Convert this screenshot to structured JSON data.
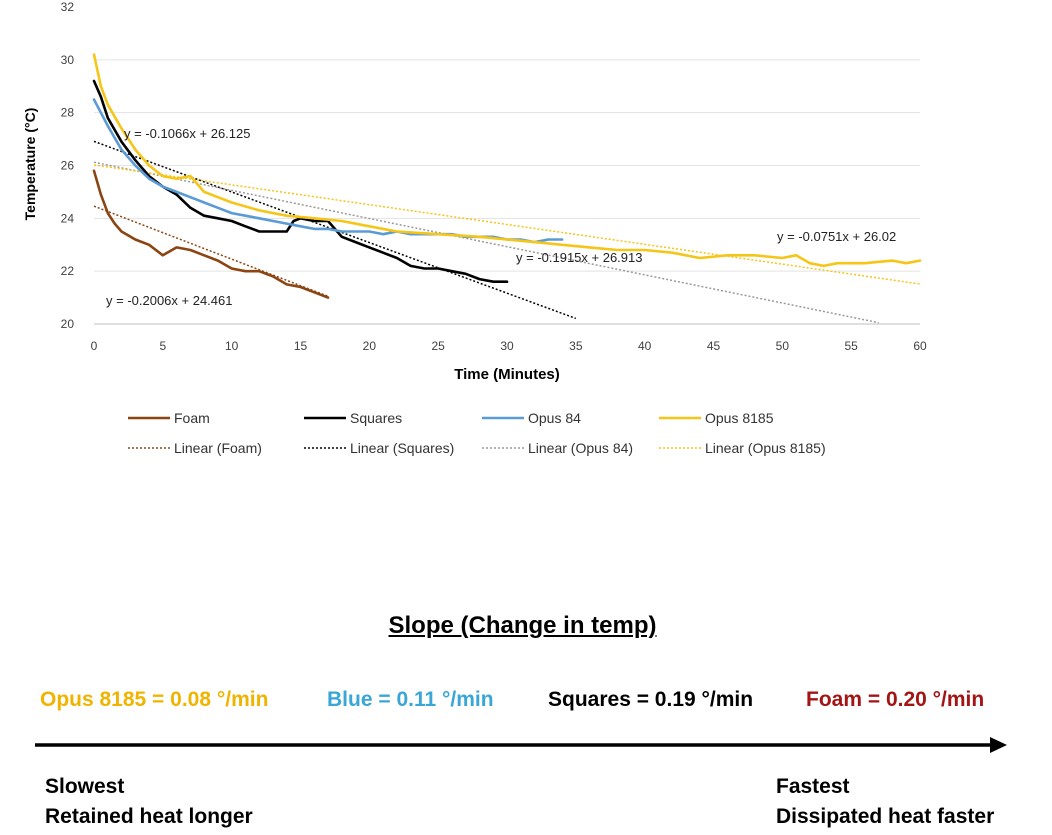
{
  "colors": {
    "foam": "#8b4513",
    "squares": "#000000",
    "opus84": "#5b9bd5",
    "opus8185": "#f5c518",
    "rate_opus8185": "#f0b400",
    "rate_blue": "#3aa6d8",
    "rate_squares": "#000000",
    "rate_foam": "#a31515"
  },
  "chart_data": {
    "type": "line",
    "xlabel": "Time (Minutes)",
    "ylabel": "Temperature (°C)",
    "xlim": [
      0,
      60
    ],
    "ylim": [
      20,
      32
    ],
    "x_ticks": [
      "0",
      "5",
      "10",
      "15",
      "20",
      "25",
      "30",
      "35",
      "40",
      "45",
      "50",
      "55",
      "60"
    ],
    "y_ticks": [
      "20",
      "22",
      "24",
      "26",
      "28",
      "30",
      "32"
    ],
    "series": [
      {
        "name": "Foam",
        "color_key": "foam",
        "x": [
          0,
          0.5,
          1,
          1.5,
          2,
          3,
          4,
          5,
          6,
          7,
          8,
          9,
          10,
          11,
          12,
          13,
          14,
          15,
          16,
          17
        ],
        "y": [
          25.8,
          24.9,
          24.2,
          23.8,
          23.5,
          23.2,
          23.0,
          22.6,
          22.9,
          22.8,
          22.6,
          22.4,
          22.1,
          22.0,
          22.0,
          21.8,
          21.5,
          21.4,
          21.2,
          21.0
        ]
      },
      {
        "name": "Squares",
        "color_key": "squares",
        "x": [
          0,
          0.5,
          1,
          2,
          3,
          4,
          5,
          6,
          7,
          8,
          9,
          10,
          11,
          12,
          13,
          14,
          14.5,
          15,
          16,
          17,
          18,
          19,
          20,
          21,
          22,
          23,
          24,
          25,
          26,
          27,
          28,
          29,
          30
        ],
        "y": [
          29.2,
          28.6,
          27.8,
          26.9,
          26.2,
          25.6,
          25.2,
          24.9,
          24.4,
          24.1,
          24.0,
          23.9,
          23.7,
          23.5,
          23.5,
          23.5,
          23.9,
          24.0,
          23.9,
          23.9,
          23.3,
          23.1,
          22.9,
          22.7,
          22.5,
          22.2,
          22.1,
          22.1,
          22.0,
          21.9,
          21.7,
          21.6,
          21.6
        ]
      },
      {
        "name": "Opus 84",
        "color_key": "opus84",
        "x": [
          0,
          0.5,
          1,
          2,
          3,
          4,
          5,
          6,
          7,
          8,
          9,
          10,
          11,
          12,
          13,
          14,
          15,
          16,
          17,
          18,
          19,
          20,
          21,
          22,
          23,
          24,
          25,
          26,
          27,
          28,
          29,
          30,
          31,
          32,
          33,
          34
        ],
        "y": [
          28.5,
          28.0,
          27.5,
          26.6,
          26.0,
          25.5,
          25.2,
          25.0,
          24.8,
          24.6,
          24.4,
          24.2,
          24.1,
          24.0,
          23.9,
          23.8,
          23.7,
          23.6,
          23.6,
          23.5,
          23.5,
          23.5,
          23.4,
          23.5,
          23.4,
          23.4,
          23.4,
          23.4,
          23.3,
          23.3,
          23.3,
          23.2,
          23.2,
          23.1,
          23.2,
          23.2
        ]
      },
      {
        "name": "Opus 8185",
        "color_key": "opus8185",
        "x": [
          0,
          0.5,
          1,
          2,
          3,
          4,
          5,
          6,
          7,
          8,
          9,
          10,
          12,
          14,
          16,
          18,
          20,
          22,
          25,
          28,
          30,
          32,
          34,
          36,
          38,
          40,
          42,
          44,
          46,
          48,
          50,
          51,
          52,
          53,
          54,
          56,
          58,
          59,
          60
        ],
        "y": [
          30.2,
          29.0,
          28.3,
          27.4,
          26.6,
          26.0,
          25.6,
          25.5,
          25.6,
          25.0,
          24.8,
          24.6,
          24.3,
          24.1,
          24.0,
          23.9,
          23.7,
          23.5,
          23.4,
          23.3,
          23.2,
          23.1,
          23.0,
          22.9,
          22.8,
          22.8,
          22.7,
          22.5,
          22.6,
          22.6,
          22.5,
          22.6,
          22.3,
          22.2,
          22.3,
          22.3,
          22.4,
          22.3,
          22.4
        ]
      }
    ],
    "trendlines": [
      {
        "name": "Linear (Foam)",
        "color_key": "foam",
        "slope": -0.2006,
        "intercept": 24.461,
        "x_range": [
          0,
          17
        ],
        "equation": "y = -0.2006x + 24.461"
      },
      {
        "name": "Linear (Squares)",
        "color_key": "squares",
        "slope": -0.1915,
        "intercept": 26.913,
        "x_range": [
          0,
          35
        ],
        "equation": "y = -0.1915x + 26.913"
      },
      {
        "name": "Linear (Opus 84)",
        "color_key": "opus84",
        "slope": -0.1066,
        "intercept": 26.125,
        "x_range": [
          0,
          57
        ],
        "equation": "y = -0.1066x + 26.125"
      },
      {
        "name": "Linear (Opus 8185)",
        "color_key": "opus8185",
        "slope": -0.0751,
        "intercept": 26.02,
        "x_range": [
          0,
          60
        ],
        "equation": "y = -0.0751x + 26.02"
      }
    ]
  },
  "slope_section": {
    "title": "Slope (Change in temp)",
    "rates": [
      {
        "label": "Opus 8185 = 0.08 °/min",
        "color_key": "rate_opus8185"
      },
      {
        "label": "Blue = 0.11 °/min",
        "color_key": "rate_blue"
      },
      {
        "label": "Squares = 0.19 °/min",
        "color_key": "rate_squares"
      },
      {
        "label": "Foam = 0.20 °/min",
        "color_key": "rate_foam"
      }
    ],
    "slowest": {
      "line1": "Slowest",
      "line2": "Retained heat longer"
    },
    "fastest": {
      "line1": "Fastest",
      "line2": "Dissipated heat faster"
    }
  }
}
